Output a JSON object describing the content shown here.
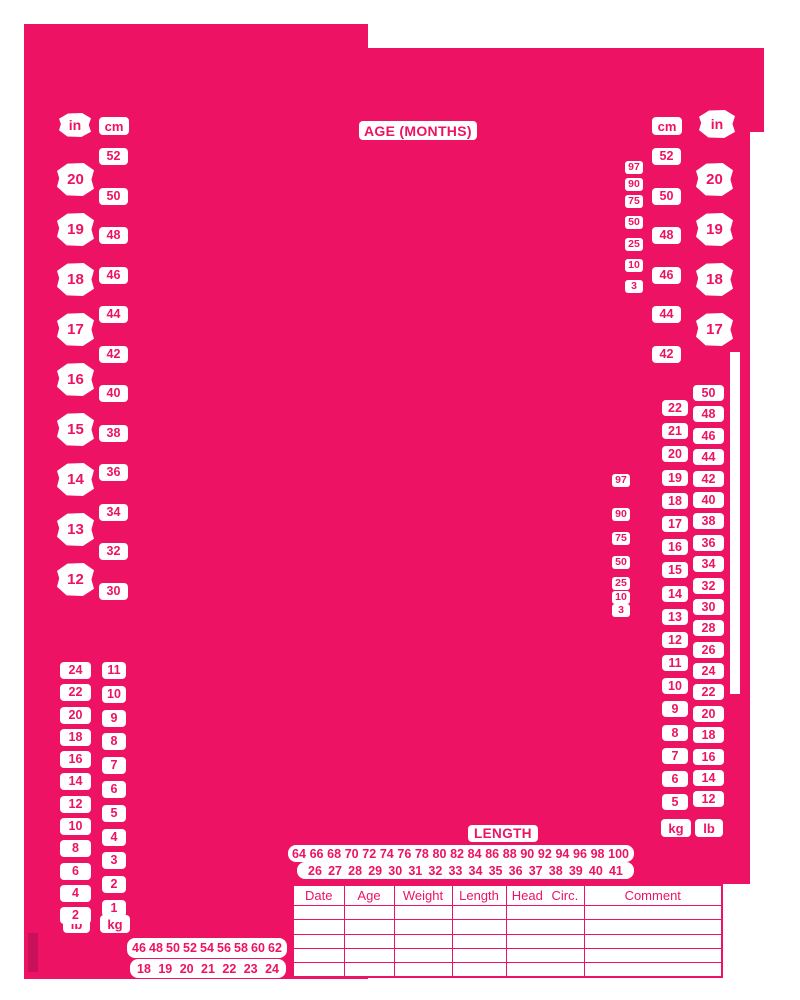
{
  "colors": {
    "chart_pink": "#ED1263",
    "dark_pink_mark": "#C9105A",
    "label_white": "#FFFFFF"
  },
  "age_axis": {
    "label": "AGE (MONTHS)"
  },
  "units": {
    "inches": "in",
    "centimeters": "cm",
    "pounds": "lb",
    "kilograms": "kg"
  },
  "head_circumference": {
    "left": {
      "in_ticks": [
        "20",
        "19",
        "18",
        "17",
        "16",
        "15",
        "14",
        "13",
        "12"
      ],
      "cm_ticks": [
        "52",
        "50",
        "48",
        "46",
        "44",
        "42",
        "40",
        "38",
        "36",
        "34",
        "32",
        "30"
      ]
    },
    "right": {
      "cm_ticks": [
        "52",
        "50",
        "48",
        "46",
        "44",
        "42"
      ],
      "in_ticks": [
        "20",
        "19",
        "18",
        "17"
      ],
      "percentiles": [
        "97",
        "90",
        "75",
        "50",
        "25",
        "10",
        "3"
      ]
    }
  },
  "weight": {
    "left": {
      "lb_ticks": [
        "24",
        "22",
        "20",
        "18",
        "16",
        "14",
        "12",
        "10",
        "8",
        "6",
        "4",
        "2"
      ],
      "kg_ticks": [
        "11",
        "10",
        "9",
        "8",
        "7",
        "6",
        "5",
        "4",
        "3",
        "2",
        "1"
      ]
    },
    "right": {
      "percentiles": [
        "97",
        "90",
        "75",
        "50",
        "25",
        "10",
        "3"
      ],
      "kg_ticks": [
        "22",
        "21",
        "20",
        "19",
        "18",
        "17",
        "16",
        "15",
        "14",
        "13",
        "12",
        "11",
        "10",
        "9",
        "8",
        "7",
        "6",
        "5"
      ],
      "lb_ticks": [
        "50",
        "48",
        "46",
        "44",
        "42",
        "40",
        "38",
        "36",
        "34",
        "32",
        "30",
        "28",
        "26",
        "24",
        "22",
        "20",
        "18",
        "16",
        "14",
        "12"
      ]
    }
  },
  "length_axis": {
    "label": "LENGTH",
    "cm_ticks": [
      "64",
      "66",
      "68",
      "70",
      "72",
      "74",
      "76",
      "78",
      "80",
      "82",
      "84",
      "86",
      "88",
      "90",
      "92",
      "94",
      "96",
      "98",
      "100"
    ],
    "in_ticks": [
      "26",
      "27",
      "28",
      "29",
      "30",
      "31",
      "32",
      "33",
      "34",
      "35",
      "36",
      "37",
      "38",
      "39",
      "40",
      "41"
    ]
  },
  "length_axis_lower_left": {
    "cm_ticks": [
      "46",
      "48",
      "50",
      "52",
      "54",
      "56",
      "58",
      "60",
      "62"
    ],
    "in_ticks": [
      "18",
      "19",
      "20",
      "21",
      "22",
      "23",
      "24"
    ]
  },
  "record_table": {
    "headers": {
      "date": "Date",
      "age": "Age",
      "weight": "Weight",
      "length": "Length",
      "head_circ": "Head Circ.",
      "comment": "Comment"
    },
    "empty_row_count": "5"
  }
}
